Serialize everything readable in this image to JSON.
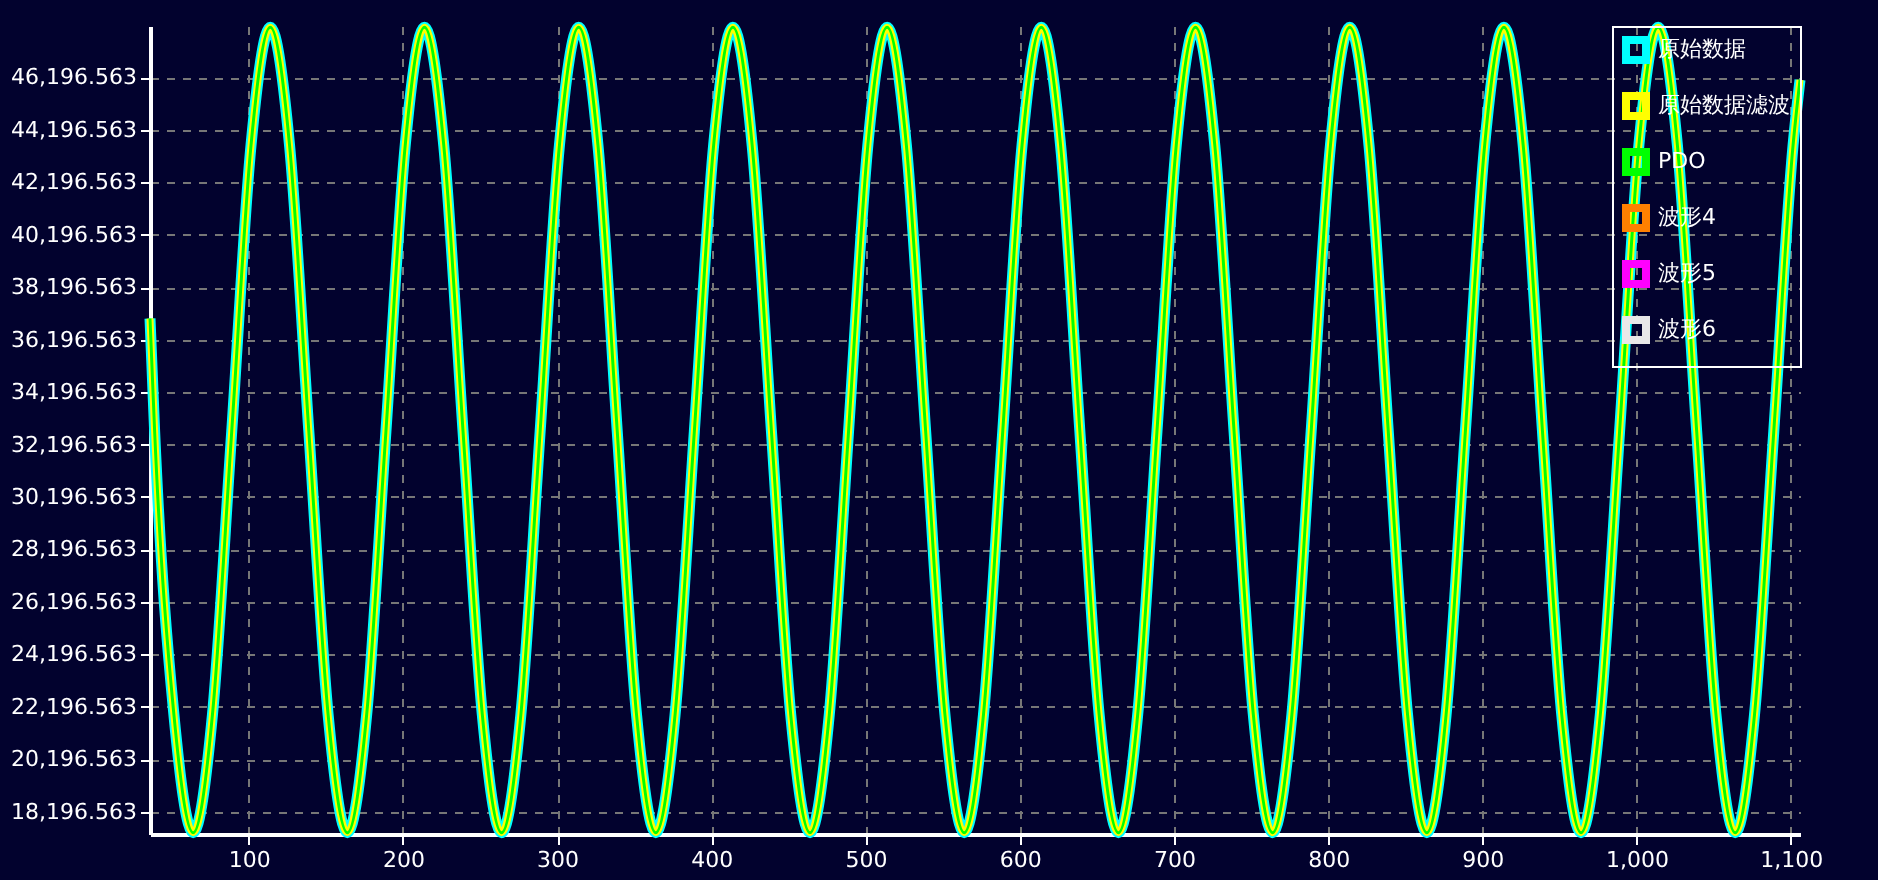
{
  "chart_data": {
    "type": "line",
    "x": [
      36,
      39,
      51.5,
      64,
      76.5,
      89,
      101.5,
      114,
      126.5,
      139,
      151.5,
      164,
      176.5,
      189,
      201.5,
      214,
      226.5,
      239,
      251.5,
      264,
      276.5,
      289,
      301.5,
      314,
      326.5,
      339,
      351.5,
      364,
      376.5,
      389,
      401.5,
      414,
      426.5,
      439,
      451.5,
      464,
      476.5,
      489,
      501.5,
      514,
      526.5,
      539,
      551.5,
      564,
      576.5,
      589,
      601.5,
      614,
      626.5,
      639,
      651.5,
      664,
      676.5,
      689,
      701.5,
      714,
      726.5,
      739,
      751.5,
      764,
      776.5,
      789,
      801.5,
      814,
      826.5,
      839,
      851.5,
      864,
      876.5,
      889,
      901.5,
      914,
      926.5,
      939,
      951.5,
      964,
      976.5,
      989,
      1001.5,
      1014,
      1026.5,
      1039,
      1051.5,
      1064,
      1076.5,
      1089,
      1101.5,
      1106
    ],
    "series": [
      {
        "name": "原始数据",
        "color": "#00ffff",
        "values": [
          37000,
          32700,
          21900,
          17400,
          21900,
          32700,
          43600,
          48100,
          43600,
          32700,
          21900,
          17400,
          21900,
          32700,
          43600,
          48100,
          43600,
          32700,
          21900,
          17400,
          21900,
          32700,
          43600,
          48100,
          43600,
          32700,
          21900,
          17400,
          21900,
          32700,
          43600,
          48100,
          43600,
          32700,
          21900,
          17400,
          21900,
          32700,
          43600,
          48100,
          43600,
          32700,
          21900,
          17400,
          21900,
          32700,
          43600,
          48100,
          43600,
          32700,
          21900,
          17400,
          21900,
          32700,
          43600,
          48100,
          43600,
          32700,
          21900,
          17400,
          21900,
          32700,
          43600,
          48100,
          43600,
          32700,
          21900,
          17400,
          21900,
          32700,
          43600,
          48100,
          43600,
          32700,
          21900,
          17400,
          21900,
          32700,
          43600,
          48100,
          43600,
          32700,
          21900,
          17400,
          21900,
          32700,
          43600,
          46100
        ]
      },
      {
        "name": "原始数据滤波",
        "color": "#ffff00",
        "values": [
          37000,
          32700,
          21900,
          17400,
          21900,
          32700,
          43600,
          48100,
          43600,
          32700,
          21900,
          17400,
          21900,
          32700,
          43600,
          48100,
          43600,
          32700,
          21900,
          17400,
          21900,
          32700,
          43600,
          48100,
          43600,
          32700,
          21900,
          17400,
          21900,
          32700,
          43600,
          48100,
          43600,
          32700,
          21900,
          17400,
          21900,
          32700,
          43600,
          48100,
          43600,
          32700,
          21900,
          17400,
          21900,
          32700,
          43600,
          48100,
          43600,
          32700,
          21900,
          17400,
          21900,
          32700,
          43600,
          48100,
          43600,
          32700,
          21900,
          17400,
          21900,
          32700,
          43600,
          48100,
          43600,
          32700,
          21900,
          17400,
          21900,
          32700,
          43600,
          48100,
          43600,
          32700,
          21900,
          17400,
          21900,
          32700,
          43600,
          48100,
          43600,
          32700,
          21900,
          17400,
          21900,
          32700,
          43600,
          46100
        ]
      },
      {
        "name": "PDO",
        "color": "#00ff00",
        "values": [
          37000,
          32700,
          21900,
          17400,
          21900,
          32700,
          43600,
          48100,
          43600,
          32700,
          21900,
          17400,
          21900,
          32700,
          43600,
          48100,
          43600,
          32700,
          21900,
          17400,
          21900,
          32700,
          43600,
          48100,
          43600,
          32700,
          21900,
          17400,
          21900,
          32700,
          43600,
          48100,
          43600,
          32700,
          21900,
          17400,
          21900,
          32700,
          43600,
          48100,
          43600,
          32700,
          21900,
          17400,
          21900,
          32700,
          43600,
          48100,
          43600,
          32700,
          21900,
          17400,
          21900,
          32700,
          43600,
          48100,
          43600,
          32700,
          21900,
          17400,
          21900,
          32700,
          43600,
          48100,
          43600,
          32700,
          21900,
          17400,
          21900,
          32700,
          43600,
          48100,
          43600,
          32700,
          21900,
          17400,
          21900,
          32700,
          43600,
          48100,
          43600,
          32700,
          21900,
          17400,
          21900,
          32700,
          43600,
          46100
        ]
      },
      {
        "name": "波形4",
        "color": "#ff8000",
        "values": [
          null,
          null,
          null,
          null,
          null,
          null,
          null,
          null,
          null,
          null,
          null,
          null,
          null,
          null,
          null,
          null,
          null,
          null,
          null,
          null,
          null,
          null,
          null,
          null,
          null,
          null,
          null,
          null,
          null,
          null,
          null,
          null,
          null,
          null,
          null,
          null,
          null,
          null,
          null,
          null,
          null,
          null,
          null,
          null,
          null,
          null,
          null,
          null,
          null,
          null,
          null,
          null,
          null,
          null,
          null,
          null,
          null,
          null,
          null,
          null,
          null,
          null,
          null,
          null,
          null,
          null,
          null,
          null,
          null,
          null,
          null,
          null,
          null,
          null,
          null,
          null,
          null,
          null,
          null,
          null,
          null,
          null,
          null,
          null,
          null,
          null,
          null,
          null
        ]
      },
      {
        "name": "波形5",
        "color": "#ff00ff",
        "values": [
          null,
          null,
          null,
          null,
          null,
          null,
          null,
          null,
          null,
          null,
          null,
          null,
          null,
          null,
          null,
          null,
          null,
          null,
          null,
          null,
          null,
          null,
          null,
          null,
          null,
          null,
          null,
          null,
          null,
          null,
          null,
          null,
          null,
          null,
          null,
          null,
          null,
          null,
          null,
          null,
          null,
          null,
          null,
          null,
          null,
          null,
          null,
          null,
          null,
          null,
          null,
          null,
          null,
          null,
          null,
          null,
          null,
          null,
          null,
          null,
          null,
          null,
          null,
          null,
          null,
          null,
          null,
          null,
          null,
          null,
          null,
          null,
          null,
          null,
          null,
          null,
          null,
          null,
          null,
          null,
          null,
          null,
          null,
          null,
          null,
          null,
          null,
          null
        ]
      },
      {
        "name": "波形6",
        "color": "#e8e8e8",
        "values": [
          null,
          null,
          null,
          null,
          null,
          null,
          null,
          null,
          null,
          null,
          null,
          null,
          null,
          null,
          null,
          null,
          null,
          null,
          null,
          null,
          null,
          null,
          null,
          null,
          null,
          null,
          null,
          null,
          null,
          null,
          null,
          null,
          null,
          null,
          null,
          null,
          null,
          null,
          null,
          null,
          null,
          null,
          null,
          null,
          null,
          null,
          null,
          null,
          null,
          null,
          null,
          null,
          null,
          null,
          null,
          null,
          null,
          null,
          null,
          null,
          null,
          null,
          null,
          null,
          null,
          null,
          null,
          null,
          null,
          null,
          null,
          null,
          null,
          null,
          null,
          null,
          null,
          null,
          null,
          null,
          null,
          null,
          null,
          null,
          null,
          null,
          null,
          null
        ]
      }
    ],
    "xlim": [
      36,
      1106
    ],
    "xticks": [
      100,
      200,
      300,
      400,
      500,
      600,
      700,
      800,
      900,
      {
        "value": 1000,
        "label": "1,000"
      },
      {
        "value": 1100,
        "label": "1,100"
      }
    ],
    "ylim": [
      17350,
      48150
    ],
    "yticks": [
      {
        "value": 18196.563,
        "label": "18,196.563"
      },
      {
        "value": 20196.563,
        "label": "20,196.563"
      },
      {
        "value": 22196.563,
        "label": "22,196.563"
      },
      {
        "value": 24196.563,
        "label": "24,196.563"
      },
      {
        "value": 26196.563,
        "label": "26,196.563"
      },
      {
        "value": 28196.563,
        "label": "28,196.563"
      },
      {
        "value": 30196.563,
        "label": "30,196.563"
      },
      {
        "value": 32196.563,
        "label": "32,196.563"
      },
      {
        "value": 34196.563,
        "label": "34,196.563"
      },
      {
        "value": 36196.563,
        "label": "36,196.563"
      },
      {
        "value": 38196.563,
        "label": "38,196.563"
      },
      {
        "value": 40196.563,
        "label": "40,196.563"
      },
      {
        "value": 42196.563,
        "label": "42,196.563"
      },
      {
        "value": 44196.563,
        "label": "44,196.563"
      },
      {
        "value": 46196.563,
        "label": "46,196.563"
      }
    ],
    "grid": true,
    "legend": "top right",
    "line_style": "solid",
    "marker": "none"
  }
}
